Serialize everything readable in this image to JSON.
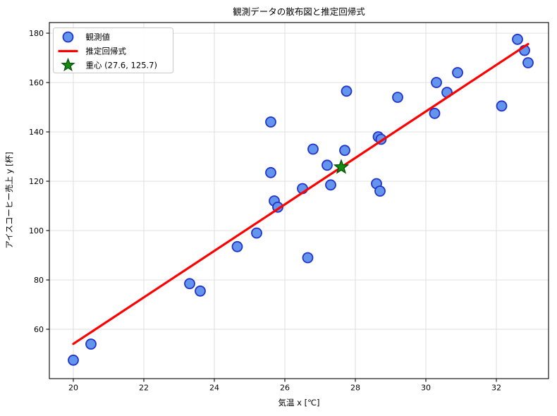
{
  "chart_data": {
    "type": "scatter",
    "title": "観測データの散布図と推定回帰式",
    "xlabel": "気温 x [℃]",
    "ylabel": "アイスコーヒー売上 y [杯]",
    "xlim": [
      19.32,
      33.48
    ],
    "ylim": [
      40,
      184.3
    ],
    "xticks": [
      20,
      22,
      24,
      26,
      28,
      30,
      32
    ],
    "yticks": [
      60,
      80,
      100,
      120,
      140,
      160,
      180
    ],
    "grid": true,
    "legend_position": "upper left",
    "series": [
      {
        "name": "観測値",
        "kind": "scatter",
        "points": [
          [
            20.0,
            47.5
          ],
          [
            20.5,
            54.0
          ],
          [
            23.3,
            78.5
          ],
          [
            23.6,
            75.5
          ],
          [
            24.65,
            93.5
          ],
          [
            25.2,
            99.0
          ],
          [
            25.6,
            144.0
          ],
          [
            25.6,
            123.5
          ],
          [
            25.7,
            112.0
          ],
          [
            25.8,
            109.5
          ],
          [
            26.5,
            117.0
          ],
          [
            26.65,
            89.0
          ],
          [
            26.8,
            133.0
          ],
          [
            27.2,
            126.5
          ],
          [
            27.3,
            118.5
          ],
          [
            27.7,
            132.5
          ],
          [
            27.75,
            156.5
          ],
          [
            28.6,
            119.0
          ],
          [
            28.65,
            138.0
          ],
          [
            28.7,
            116.0
          ],
          [
            28.73,
            137.0
          ],
          [
            29.2,
            154.0
          ],
          [
            30.25,
            147.5
          ],
          [
            30.3,
            160.0
          ],
          [
            30.6,
            156.0
          ],
          [
            30.9,
            164.0
          ],
          [
            32.15,
            150.5
          ],
          [
            32.6,
            177.5
          ],
          [
            32.8,
            173.0
          ],
          [
            32.9,
            168.0
          ]
        ]
      },
      {
        "name": "推定回帰式",
        "kind": "line",
        "slope": 9.42,
        "intercept": -134.3,
        "x_range": [
          20.0,
          32.9
        ]
      },
      {
        "name": "重心 (27.6, 125.7)",
        "kind": "point",
        "marker": "star",
        "point": [
          27.6,
          125.7
        ]
      }
    ],
    "legend": {
      "items": [
        {
          "marker": "circle-icon",
          "label": "観測値"
        },
        {
          "marker": "line-icon",
          "label": "推定回帰式"
        },
        {
          "marker": "star-icon",
          "label": "重心 (27.6, 125.7)"
        }
      ]
    }
  },
  "colors": {
    "background": "#ffffff",
    "marker_fill": "#6495ed",
    "marker_edge": "#2233cc",
    "regression_line": "#ff0000",
    "centroid_fill": "#128c12",
    "centroid_edge": "#064f06",
    "grid": "#dcdcdc",
    "spine": "#000000",
    "legend_border": "#c8c8c8",
    "legend_bg": "#ffffff"
  }
}
